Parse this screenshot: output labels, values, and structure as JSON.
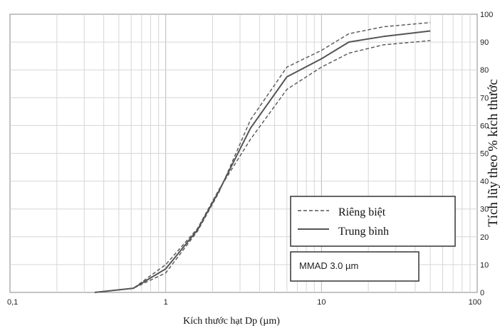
{
  "chart_data": {
    "type": "line",
    "x_scale": "log",
    "xlim": [
      0.1,
      100
    ],
    "ylim": [
      0,
      100
    ],
    "x_ticks": [
      "0,1",
      "1",
      "10",
      "100"
    ],
    "y_ticks": [
      "0",
      "10",
      "20",
      "30",
      "40",
      "50",
      "60",
      "70",
      "80",
      "90",
      "100"
    ],
    "xlabel": "Kích thước hạt Dp (µm)",
    "ylabel": "Tích lũy theo % kích thước",
    "grid": true,
    "legend_position": "bottom-right",
    "series": [
      {
        "name": "Riêng biệt",
        "style": "dashed",
        "color": "#555555",
        "points": [
          [
            0.35,
            0
          ],
          [
            0.62,
            1.5
          ],
          [
            1.0,
            7
          ],
          [
            1.6,
            22
          ],
          [
            2.2,
            36
          ],
          [
            3.5,
            62
          ],
          [
            6.0,
            81
          ],
          [
            10.0,
            87
          ],
          [
            15.0,
            93
          ],
          [
            25.0,
            95.5
          ],
          [
            50.0,
            97
          ]
        ]
      },
      {
        "name": "Riêng biệt",
        "style": "dashed",
        "color": "#555555",
        "points": [
          [
            0.35,
            0
          ],
          [
            0.62,
            1.5
          ],
          [
            1.0,
            10
          ],
          [
            1.6,
            23
          ],
          [
            2.2,
            37
          ],
          [
            3.5,
            55
          ],
          [
            6.0,
            73
          ],
          [
            10.0,
            81
          ],
          [
            15.0,
            86
          ],
          [
            25.0,
            89
          ],
          [
            50.0,
            90.5
          ]
        ]
      },
      {
        "name": "Trung bình",
        "style": "solid",
        "color": "#555555",
        "points": [
          [
            0.35,
            0
          ],
          [
            0.62,
            1.5
          ],
          [
            1.0,
            8.5
          ],
          [
            1.6,
            22.5
          ],
          [
            2.2,
            36.5
          ],
          [
            3.5,
            59
          ],
          [
            6.0,
            77.5
          ],
          [
            10.0,
            84
          ],
          [
            15.0,
            90
          ],
          [
            25.0,
            92
          ],
          [
            50.0,
            94
          ]
        ]
      }
    ],
    "legend": {
      "dashed_label": "Riêng biệt",
      "solid_label": "Trung bình"
    },
    "annotation": "MMAD 3.0 µm"
  }
}
